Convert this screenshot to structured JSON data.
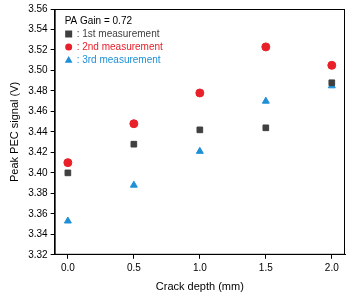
{
  "chart_data": {
    "type": "scatter",
    "annotation": "PA Gain = 0.72",
    "x_label": "Crack depth (mm)",
    "y_label": "Peak PEC signal (V)",
    "x": [
      0.0,
      0.5,
      1.0,
      1.5,
      2.0
    ],
    "series": [
      {
        "name": ": 1st measurement",
        "color": "#404040",
        "marker": "square",
        "values": [
          3.4,
          3.428,
          3.442,
          3.444,
          3.488
        ]
      },
      {
        "name": ": 2nd measurement",
        "color": "#e8202a",
        "marker": "circle",
        "values": [
          3.41,
          3.448,
          3.478,
          3.523,
          3.505
        ]
      },
      {
        "name": ": 3rd measurement",
        "color": "#1f8fd6",
        "marker": "triangle",
        "values": [
          3.353,
          3.388,
          3.421,
          3.47,
          3.485
        ]
      }
    ],
    "xlim": [
      -0.1,
      2.1
    ],
    "xticks": [
      {
        "value": 0,
        "label": "0.0"
      },
      {
        "value": 0.5,
        "label": "0.5"
      },
      {
        "value": 1,
        "label": "1.0"
      },
      {
        "value": 1.5,
        "label": "1.5"
      },
      {
        "value": 2,
        "label": "2.0"
      }
    ],
    "ylim": [
      3.32,
      3.56
    ],
    "yticks": [
      3.32,
      3.34,
      3.36,
      3.38,
      {
        "value": 3.4,
        "label": "3.40"
      },
      3.42,
      3.44,
      3.46,
      3.48,
      {
        "value": 3.5,
        "label": "3.50"
      },
      3.52,
      3.54,
      3.56
    ],
    "grid": false,
    "legend": "upper left"
  }
}
